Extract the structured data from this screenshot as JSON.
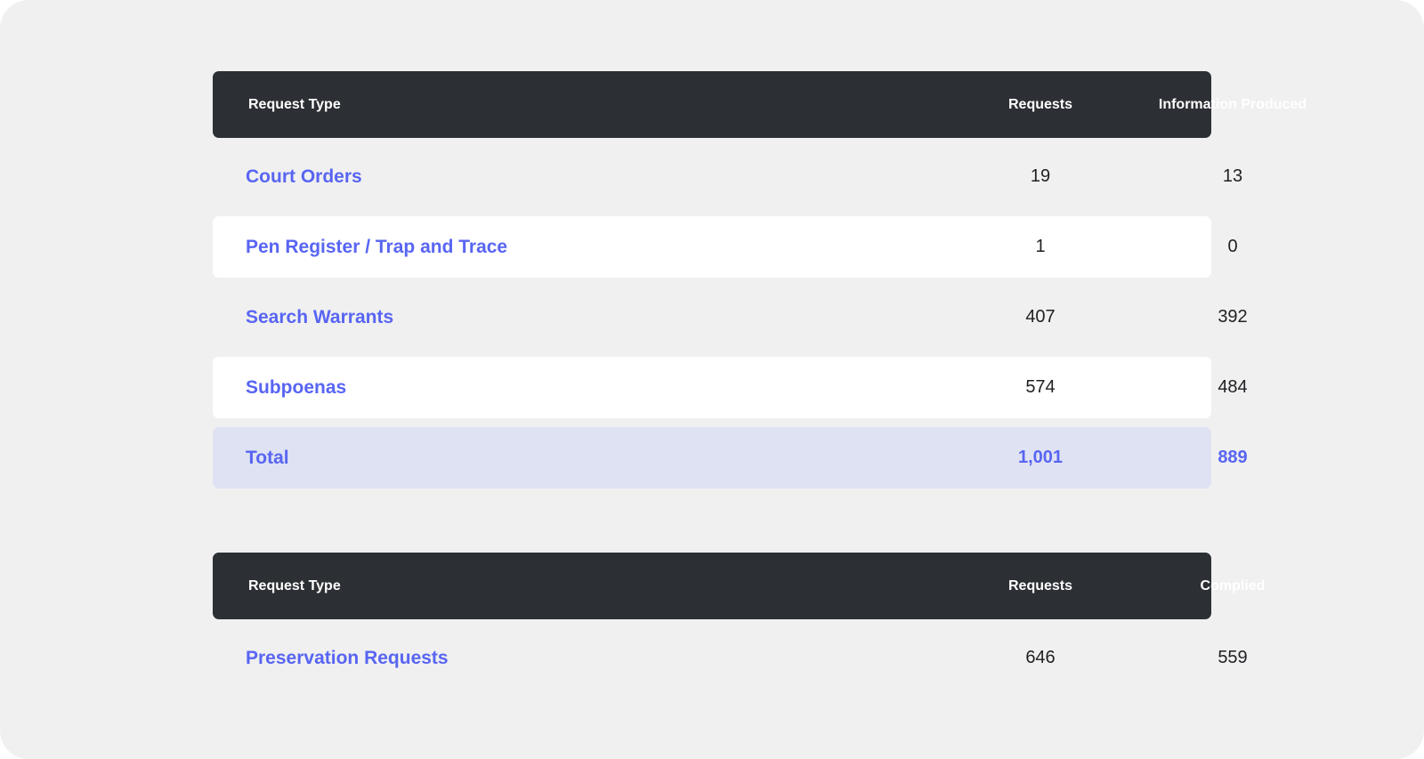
{
  "table1": {
    "headers": [
      "Request Type",
      "Requests",
      "Information Produced"
    ],
    "rows": [
      {
        "type": "Court Orders",
        "requests": "19",
        "produced": "13"
      },
      {
        "type": "Pen Register / Trap and Trace",
        "requests": "1",
        "produced": "0"
      },
      {
        "type": "Search Warrants",
        "requests": "407",
        "produced": "392"
      },
      {
        "type": "Subpoenas",
        "requests": "574",
        "produced": "484"
      }
    ],
    "total": {
      "type": "Total",
      "requests": "1,001",
      "produced": "889"
    }
  },
  "table2": {
    "headers": [
      "Request Type",
      "Requests",
      "Complied"
    ],
    "rows": [
      {
        "type": "Preservation Requests",
        "requests": "646",
        "complied": "559"
      }
    ]
  },
  "colors": {
    "page_background": "#ffffff",
    "panel_background": "#f0f0f0",
    "header_background": "#2c2f33",
    "header_text": "#ffffff",
    "label_accent": "#5865f2",
    "white_row": "#ffffff",
    "total_row": "#dfe2f3",
    "number_text": "#1f2023"
  }
}
